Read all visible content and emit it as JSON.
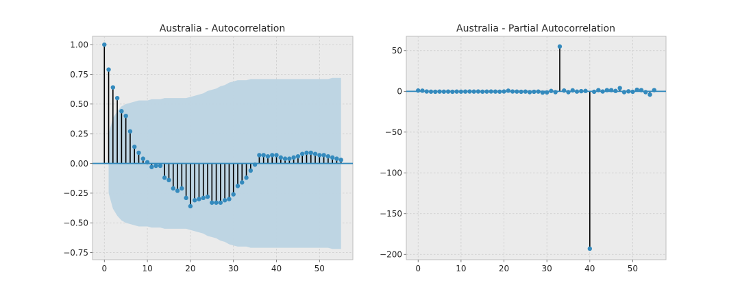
{
  "chart_data": [
    {
      "type": "stem",
      "title": "Australia - Autocorrelation",
      "xlabel": "",
      "ylabel": "",
      "xlim": [
        -2.75,
        57.75
      ],
      "ylim": [
        -0.81,
        1.07
      ],
      "xticks": [
        0,
        10,
        20,
        30,
        40,
        50
      ],
      "yticks": [
        -0.75,
        -0.5,
        -0.25,
        0.0,
        0.25,
        0.5,
        0.75,
        1.0
      ],
      "ytick_labels": [
        "−0.75",
        "−0.50",
        "−0.25",
        "0.00",
        "0.25",
        "0.50",
        "0.75",
        "1.00"
      ],
      "xtick_labels": [
        "0",
        "10",
        "20",
        "30",
        "40",
        "50"
      ],
      "grid": true,
      "lags": [
        0,
        1,
        2,
        3,
        4,
        5,
        6,
        7,
        8,
        9,
        10,
        11,
        12,
        13,
        14,
        15,
        16,
        17,
        18,
        19,
        20,
        21,
        22,
        23,
        24,
        25,
        26,
        27,
        28,
        29,
        30,
        31,
        32,
        33,
        34,
        35,
        36,
        37,
        38,
        39,
        40,
        41,
        42,
        43,
        44,
        45,
        46,
        47,
        48,
        49,
        50,
        51,
        52,
        53,
        54,
        55
      ],
      "values": [
        1.0,
        0.79,
        0.64,
        0.55,
        0.44,
        0.4,
        0.27,
        0.14,
        0.09,
        0.04,
        0.01,
        -0.03,
        -0.02,
        -0.02,
        -0.12,
        -0.14,
        -0.21,
        -0.23,
        -0.21,
        -0.29,
        -0.36,
        -0.31,
        -0.3,
        -0.29,
        -0.28,
        -0.33,
        -0.33,
        -0.33,
        -0.31,
        -0.3,
        -0.26,
        -0.19,
        -0.16,
        -0.12,
        -0.06,
        -0.01,
        0.07,
        0.07,
        0.06,
        0.07,
        0.07,
        0.05,
        0.04,
        0.04,
        0.05,
        0.06,
        0.08,
        0.09,
        0.09,
        0.08,
        0.07,
        0.07,
        0.06,
        0.05,
        0.04,
        0.03
      ],
      "confint_upper": [
        0.0,
        0.25,
        0.38,
        0.44,
        0.48,
        0.5,
        0.51,
        0.52,
        0.53,
        0.53,
        0.53,
        0.54,
        0.54,
        0.54,
        0.55,
        0.55,
        0.55,
        0.55,
        0.55,
        0.55,
        0.56,
        0.57,
        0.58,
        0.59,
        0.61,
        0.62,
        0.63,
        0.65,
        0.66,
        0.68,
        0.69,
        0.7,
        0.7,
        0.7,
        0.71,
        0.71,
        0.71,
        0.71,
        0.71,
        0.71,
        0.71,
        0.71,
        0.71,
        0.71,
        0.71,
        0.71,
        0.71,
        0.71,
        0.71,
        0.71,
        0.71,
        0.71,
        0.71,
        0.72,
        0.72,
        0.72
      ],
      "colors": {
        "marker": "#348abd",
        "stem": "#000000",
        "baseline": "#348abd",
        "band": "#bcd4e3",
        "background": "#ebebeb"
      }
    },
    {
      "type": "stem",
      "title": "Australia - Partial Autocorrelation",
      "xlabel": "",
      "ylabel": "",
      "xlim": [
        -2.75,
        57.75
      ],
      "ylim": [
        -206.5,
        67.5
      ],
      "xticks": [
        0,
        10,
        20,
        30,
        40,
        50
      ],
      "yticks": [
        -200,
        -150,
        -100,
        -50,
        0,
        50
      ],
      "ytick_labels": [
        "−200",
        "−150",
        "−100",
        "−50",
        "0",
        "50"
      ],
      "xtick_labels": [
        "0",
        "10",
        "20",
        "30",
        "40",
        "50"
      ],
      "grid": true,
      "lags": [
        0,
        1,
        2,
        3,
        4,
        5,
        6,
        7,
        8,
        9,
        10,
        11,
        12,
        13,
        14,
        15,
        16,
        17,
        18,
        19,
        20,
        21,
        22,
        23,
        24,
        25,
        26,
        27,
        28,
        29,
        30,
        31,
        32,
        33,
        34,
        35,
        36,
        37,
        38,
        39,
        40,
        41,
        42,
        43,
        44,
        45,
        46,
        47,
        48,
        49,
        50,
        51,
        52,
        53,
        54,
        55
      ],
      "values": [
        1.0,
        0.8,
        -0.2,
        -0.4,
        -0.5,
        -0.3,
        -0.4,
        -0.3,
        -0.5,
        -0.3,
        -0.4,
        -0.3,
        -0.2,
        -0.3,
        -0.2,
        -0.4,
        -0.3,
        -0.2,
        -0.3,
        -0.4,
        -0.2,
        0.8,
        -0.2,
        -0.3,
        -0.5,
        -0.3,
        -1.0,
        -0.5,
        -0.3,
        -1.5,
        -1.3,
        0.5,
        -1.0,
        55.0,
        1.0,
        -1.0,
        1.2,
        -0.3,
        0.2,
        0.5,
        -193.0,
        -0.5,
        1.5,
        -0.2,
        1.5,
        1.5,
        0.5,
        4.0,
        -1.0,
        0.0,
        -0.5,
        2.0,
        1.5,
        -1.0,
        -4.0,
        1.5
      ],
      "colors": {
        "marker": "#348abd",
        "stem": "#000000",
        "baseline": "#348abd",
        "background": "#ebebeb"
      }
    }
  ]
}
